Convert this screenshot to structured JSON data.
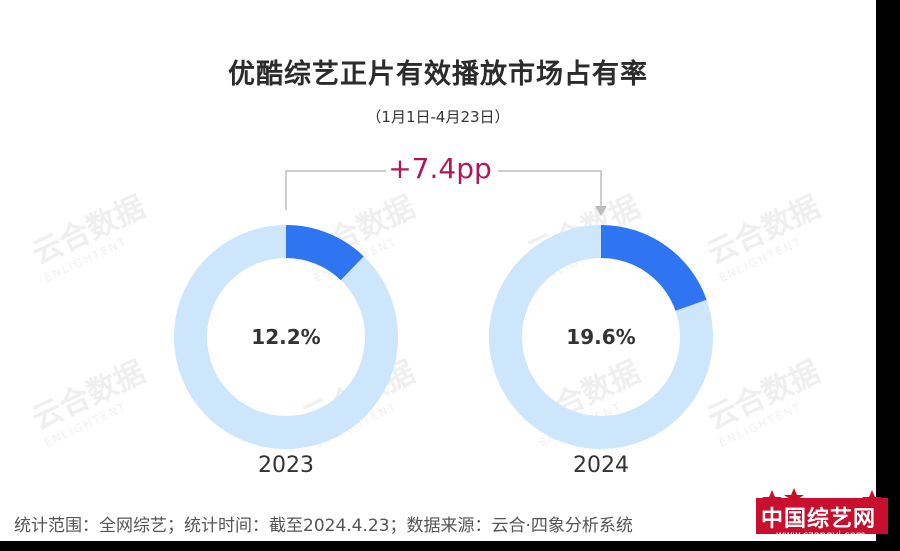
{
  "title": "优酷综艺正片有效播放市场占有率",
  "subtitle": "（1月1日-4月23日）",
  "delta_label": "+7.4pp",
  "footer": "统计范围：全网综艺；统计时间：截至2024.4.23；数据来源：云合·四象分析系统",
  "watermark": {
    "cn": "云合数据",
    "en": "ENLIGHTENT"
  },
  "logo": {
    "text": "中国综艺网",
    "url": "www.czongyi.com"
  },
  "colors": {
    "share": "#2f74f0",
    "rest": "#cde6fb",
    "delta": "#b0175a",
    "arrow": "#bdbdbd"
  },
  "chart_data": {
    "type": "pie",
    "charts": [
      {
        "year": "2023",
        "value": 12.2,
        "label": "12.2%"
      },
      {
        "year": "2024",
        "value": 19.6,
        "label": "19.6%"
      }
    ],
    "unit": "%"
  }
}
